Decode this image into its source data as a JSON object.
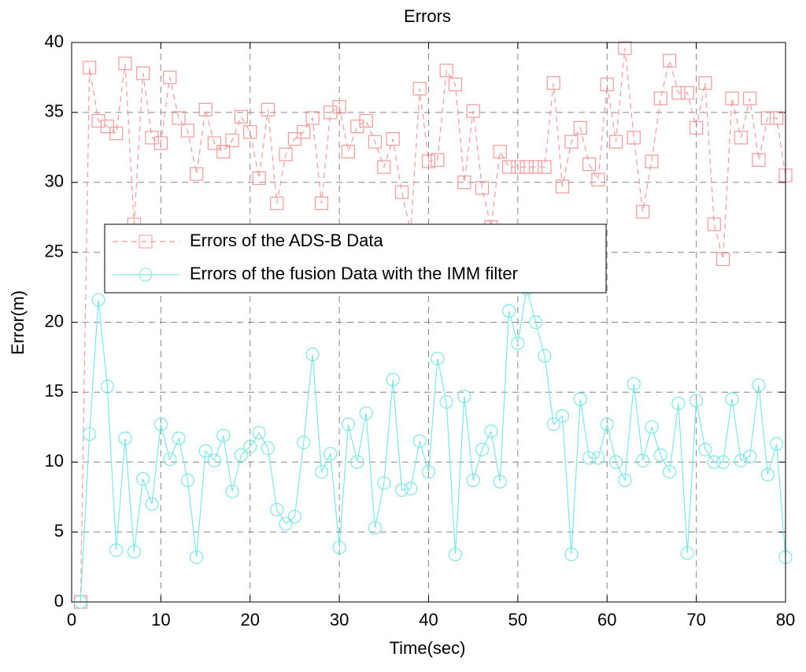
{
  "chart_data": {
    "type": "line",
    "title": "Errors",
    "x_label": "Time(sec)",
    "y_label": "Error(m)",
    "x": [
      1,
      2,
      3,
      4,
      5,
      6,
      7,
      8,
      9,
      10,
      11,
      12,
      13,
      14,
      15,
      16,
      17,
      18,
      19,
      20,
      21,
      22,
      23,
      24,
      25,
      26,
      27,
      28,
      29,
      30,
      31,
      32,
      33,
      34,
      35,
      36,
      37,
      38,
      39,
      40,
      41,
      42,
      43,
      44,
      45,
      46,
      47,
      48,
      49,
      50,
      51,
      52,
      53,
      54,
      55,
      56,
      57,
      58,
      59,
      60,
      61,
      62,
      63,
      64,
      65,
      66,
      67,
      68,
      69,
      70,
      71,
      72,
      73,
      74,
      75,
      76,
      77,
      78,
      79,
      80
    ],
    "series": [
      {
        "name": "Errors of the ADS-B Data",
        "color": "#f29a9a",
        "line_style": "dashed",
        "marker": "square",
        "values": [
          0,
          38.2,
          34.4,
          34.0,
          33.5,
          38.5,
          27.0,
          37.8,
          33.2,
          32.8,
          37.5,
          34.6,
          33.7,
          30.6,
          35.2,
          32.8,
          32.2,
          33.0,
          34.7,
          33.6,
          30.3,
          35.2,
          28.5,
          32.0,
          33.1,
          33.6,
          34.6,
          28.5,
          35.0,
          35.4,
          32.2,
          34.0,
          34.4,
          32.9,
          31.1,
          33.1,
          29.3,
          26.5,
          36.7,
          31.5,
          31.6,
          38.0,
          37.0,
          30.0,
          35.1,
          29.6,
          26.8,
          32.2,
          31.1,
          31.1,
          31.1,
          31.1,
          31.1,
          37.1,
          29.7,
          32.9,
          33.9,
          31.3,
          30.2,
          37.0,
          32.9,
          39.6,
          33.2,
          27.9,
          31.5,
          36.0,
          38.7,
          36.4,
          36.4,
          33.9,
          37.1,
          27.0,
          24.5,
          36.0,
          33.2,
          36.0,
          31.6,
          34.6,
          34.6,
          30.5
        ]
      },
      {
        "name": "Errors of the fusion Data with the IMM filter",
        "color": "#7fe6e6",
        "line_style": "solid",
        "marker": "circle",
        "values": [
          0,
          12.0,
          21.6,
          15.4,
          3.7,
          11.7,
          3.6,
          8.8,
          7.0,
          12.7,
          10.2,
          11.7,
          8.7,
          3.2,
          10.8,
          10.1,
          11.9,
          7.9,
          10.5,
          11.1,
          12.1,
          11.0,
          6.6,
          5.6,
          6.1,
          11.4,
          17.7,
          9.3,
          10.6,
          3.9,
          12.7,
          10.0,
          13.5,
          5.3,
          8.5,
          15.9,
          8.0,
          8.1,
          11.5,
          9.3,
          17.4,
          14.3,
          3.4,
          14.7,
          8.7,
          10.9,
          12.2,
          8.6,
          20.8,
          18.5,
          22.4,
          20.0,
          17.6,
          12.7,
          13.3,
          3.4,
          14.5,
          10.3,
          10.3,
          12.7,
          10.0,
          8.7,
          15.6,
          10.1,
          12.5,
          10.5,
          9.3,
          14.2,
          3.5,
          14.4,
          10.9,
          10.0,
          10.0,
          14.5,
          10.1,
          10.4,
          15.5,
          9.1,
          11.3,
          3.2
        ]
      }
    ],
    "xlim": [
      0,
      80
    ],
    "xticks": [
      0,
      10,
      20,
      30,
      40,
      50,
      60,
      70,
      80
    ],
    "ylim": [
      0,
      40
    ],
    "yticks": [
      0,
      5,
      10,
      15,
      20,
      25,
      30,
      35,
      40
    ],
    "grid": true,
    "legend_position": "left"
  }
}
